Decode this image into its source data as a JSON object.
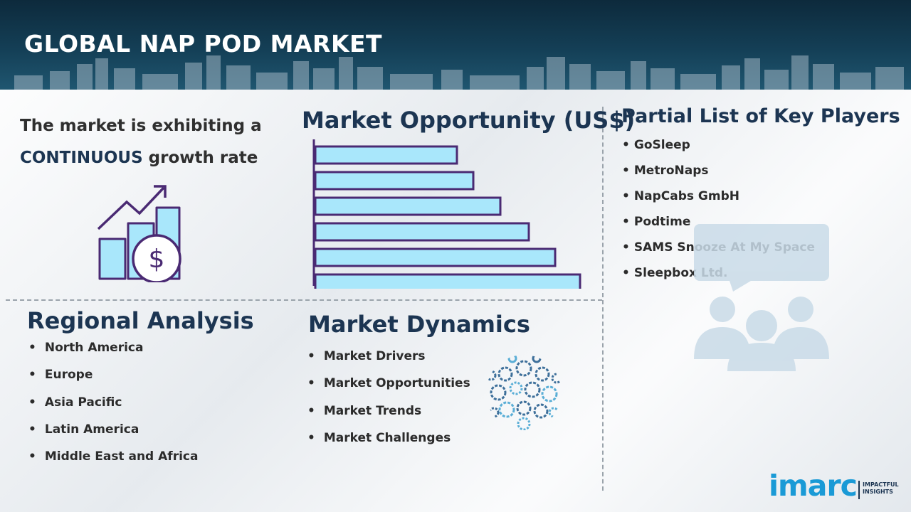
{
  "header": {
    "title": "GLOBAL NAP POD MARKET"
  },
  "growth": {
    "line1": "The market is exhibiting a",
    "highlight": "CONTINUOUS",
    "line2_rest": "growth rate",
    "icon": "growth-chart-dollar-icon"
  },
  "opportunity": {
    "title": "Market Opportunity (US$)"
  },
  "chart_data": {
    "type": "bar",
    "orientation": "horizontal",
    "title": "Market Opportunity (US$)",
    "categories": [
      "",
      "",
      "",
      "",
      "",
      ""
    ],
    "values": [
      199,
      222,
      260,
      300,
      337,
      372
    ],
    "axis_labels_shown": false,
    "bar_fill": "#a9e7fb",
    "bar_stroke": "#4a2a73"
  },
  "players": {
    "title": "Partial List of Key Players",
    "items": [
      "GoSleep",
      "MetroNaps",
      "NapCabs GmbH",
      "Podtime",
      "SAMS Snooze At My Space",
      "Sleepbox Ltd."
    ],
    "icon": "people-chat-icon"
  },
  "regional": {
    "title": "Regional Analysis",
    "items": [
      "North America",
      "Europe",
      "Asia Pacific",
      "Latin America",
      "Middle East and Africa"
    ]
  },
  "dynamics": {
    "title": "Market Dynamics",
    "items": [
      "Market Drivers",
      "Market Opportunities",
      "Market Trends",
      "Market Challenges"
    ],
    "icon": "gears-globe-icon"
  },
  "logo": {
    "word": "imarc",
    "tagline_1": "IMPACTFUL",
    "tagline_2": "INSIGHTS"
  },
  "colors": {
    "header_bg": "#143f56",
    "heading": "#1c3552",
    "accent_blue": "#1a9ad6",
    "bar_fill": "#a9e7fb",
    "bar_stroke": "#4a2a73"
  }
}
